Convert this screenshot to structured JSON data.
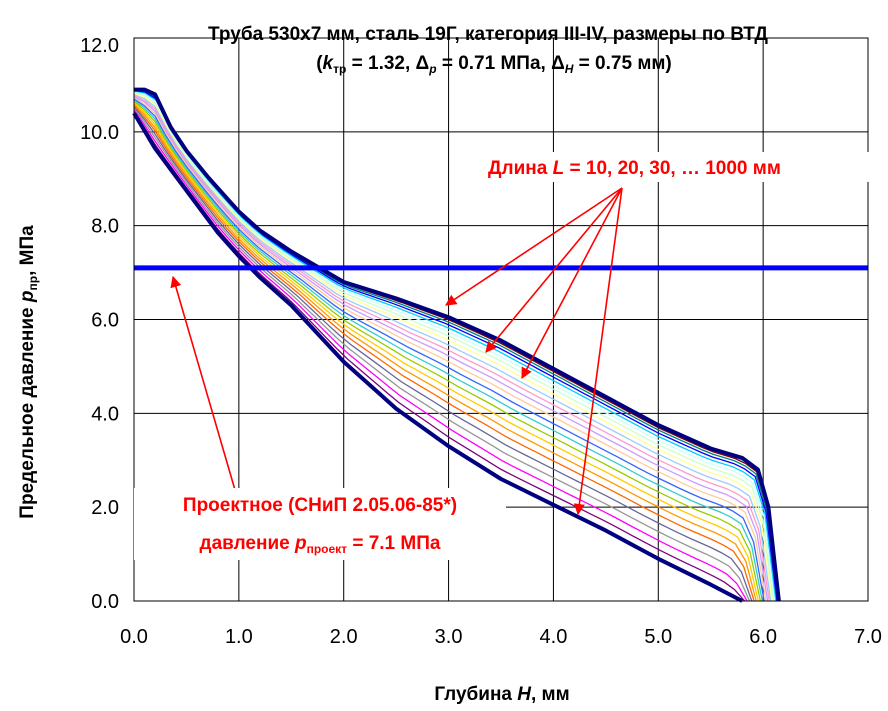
{
  "chart_data": {
    "type": "line",
    "title_line1": "Труба 530x7 мм, сталь 19Г, категория III-IV, размеры по ВТД",
    "title_line2": {
      "open": "(",
      "k": "k",
      "k_sub": "тр",
      "k_val": " = 1.32, ",
      "dp": "Δ",
      "dp_sub": "p",
      "dp_val": " = 0.71 МПа, ",
      "dh": "Δ",
      "dh_sub": "H",
      "dh_val": " = 0.75 мм)"
    },
    "xlabel": {
      "prefix": "Глубина ",
      "var": "H",
      "suffix": ", мм"
    },
    "ylabel": {
      "prefix": "Предельное давление  ",
      "var": "p",
      "sub": "пр",
      "suffix": ", МПа"
    },
    "xlim": [
      0,
      7
    ],
    "ylim": [
      0,
      12
    ],
    "xticks": [
      "0.0",
      "1.0",
      "2.0",
      "3.0",
      "4.0",
      "5.0",
      "6.0",
      "7.0"
    ],
    "yticks": [
      "0.0",
      "2.0",
      "4.0",
      "6.0",
      "8.0",
      "10.0",
      "12.0"
    ],
    "grid": true,
    "design_pressure": {
      "y": 7.1,
      "color": "#0000ff"
    },
    "annotation_length": {
      "prefix": "Длина ",
      "var": "L",
      "suffix": " = 10, 20, 30, … 1000 мм",
      "color": "#ff0000"
    },
    "annotation_design": {
      "line1": "Проектное (СНиП 2.05.06-85*)",
      "line2_prefix": "давление  ",
      "line2_var": "p",
      "line2_sub": "проект",
      "line2_suffix": " = 7.1 МПа",
      "color": "#ff0000"
    },
    "envelope_upper": {
      "color": "#000080",
      "x": [
        0.0,
        0.1,
        0.2,
        0.35,
        0.5,
        0.7,
        0.9,
        1.0,
        1.2,
        1.5,
        2.0,
        2.5,
        3.0,
        3.5,
        4.0,
        4.5,
        5.0,
        5.5,
        5.8,
        5.95,
        6.05,
        6.1,
        6.15
      ],
      "y": [
        10.9,
        10.9,
        10.8,
        10.1,
        9.6,
        9.05,
        8.55,
        8.3,
        7.9,
        7.45,
        6.8,
        6.45,
        6.05,
        5.55,
        4.95,
        4.35,
        3.75,
        3.25,
        3.05,
        2.8,
        2.0,
        1.0,
        0.0
      ]
    },
    "envelope_lower": {
      "color": "#000080",
      "x": [
        0.0,
        0.2,
        0.4,
        0.6,
        0.8,
        1.0,
        1.2,
        1.5,
        2.0,
        2.5,
        3.0,
        3.5,
        4.0,
        4.5,
        5.0,
        5.5,
        5.8
      ],
      "y": [
        10.4,
        9.65,
        9.05,
        8.45,
        7.85,
        7.35,
        6.9,
        6.3,
        5.1,
        4.1,
        3.3,
        2.6,
        2.05,
        1.5,
        0.9,
        0.35,
        0.0
      ]
    },
    "series_colors": [
      "#00ffff",
      "#800000",
      "#008080",
      "#0000ff",
      "#00ccff",
      "#ccffff",
      "#ccffcc",
      "#ffff99",
      "#99ccff",
      "#ff99cc",
      "#cc99ff",
      "#ffcc99",
      "#3366ff",
      "#33cccc",
      "#99cc00",
      "#ffcc00",
      "#ff9900",
      "#ff6600",
      "#666699",
      "#969696",
      "#ff00ff",
      "#800080"
    ]
  }
}
